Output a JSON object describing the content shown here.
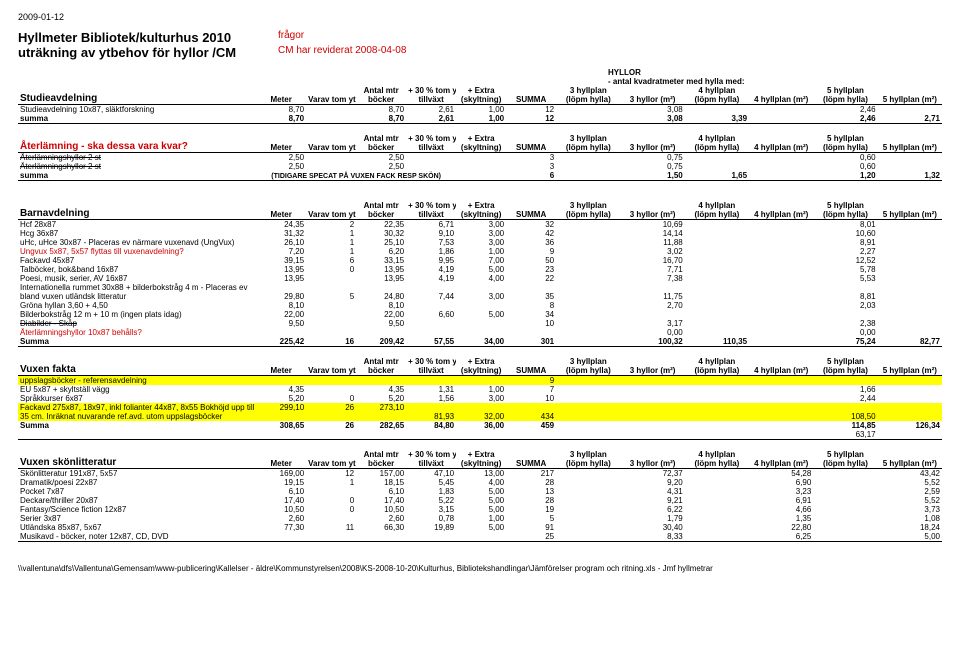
{
  "date": "2009-01-12",
  "title1": "Hyllmeter Bibliotek/kulturhus 2010",
  "title1_right": "frågor",
  "title2": "uträkning av ytbehov för hyllor /CM",
  "title2_right": "CM har reviderat 2008-04-08",
  "hyllor_header": "HYLLOR",
  "hyllor_sub": "- antal kvadratmeter med hylla med:",
  "cols": {
    "meter": "Meter",
    "varav": "Varav tom yta",
    "antal_mtr": "Antal mtr",
    "bocker": "böcker",
    "plus30": "+ 30 % tom yta",
    "tillvaxt": "tillväxt",
    "extra": "+ Extra",
    "skyltning": "(skyltning)",
    "summa": "SUMMA",
    "h3a": "3 hyllplan",
    "h3b": "(löpm hylla)",
    "h3c": "3 hyllor (m²)",
    "h4a": "4 hyllplan",
    "h4b": "(löpm hylla)",
    "h4c": "4 hyllplan (m²)",
    "h5a": "5 hyllplan",
    "h5b": "(löpm hylla)",
    "h5c": "5 hyllplan (m²)"
  },
  "sec1": {
    "title": "Studieavdelning",
    "rows": [
      {
        "label": "Studieavdelning 10x87, släktforskning",
        "v": [
          "8,70",
          "",
          "8,70",
          "2,61",
          "1,00",
          "12",
          "",
          "3,08",
          "",
          "",
          "2,46",
          ""
        ]
      },
      {
        "label": "summa",
        "bold": true,
        "v": [
          "8,70",
          "",
          "8,70",
          "2,61",
          "1,00",
          "12",
          "",
          "3,08",
          "3,39",
          "",
          "2,46",
          "2,71"
        ]
      }
    ]
  },
  "sec2": {
    "title": "Återlämning - ska dessa vara kvar?",
    "rows": [
      {
        "label": "Återlämningshyllor 2 st",
        "strike": true,
        "v": [
          "2,50",
          "",
          "2,50",
          "",
          "",
          "3",
          "",
          "0,75",
          "",
          "",
          "0,60",
          ""
        ]
      },
      {
        "label": "Återlämningshyllor 2 st",
        "strike": true,
        "v": [
          "2,50",
          "",
          "2,50",
          "",
          "",
          "3",
          "",
          "0,75",
          "",
          "",
          "0,60",
          ""
        ]
      },
      {
        "label": "summa",
        "bold": true,
        "note": "(TIDIGARE SPECAT PÅ VUXEN FACK RESP SKÖN)",
        "v": [
          "",
          "",
          "",
          "",
          "",
          "6",
          "",
          "1,50",
          "1,65",
          "",
          "1,20",
          "1,32"
        ]
      }
    ]
  },
  "sec3": {
    "title": "Barnavdelning",
    "rows": [
      {
        "label": "Hcf 28x87",
        "v": [
          "24,35",
          "2",
          "22,35",
          "6,71",
          "3,00",
          "32",
          "",
          "10,69",
          "",
          "",
          "8,01",
          ""
        ]
      },
      {
        "label": "Hcg 36x87",
        "v": [
          "31,32",
          "1",
          "30,32",
          "9,10",
          "3,00",
          "42",
          "",
          "14,14",
          "",
          "",
          "10,60",
          ""
        ]
      },
      {
        "label": "uHc, uHce 30x87 - Placeras ev närmare vuxenavd (UngVux)",
        "v": [
          "26,10",
          "1",
          "25,10",
          "7,53",
          "3,00",
          "36",
          "",
          "11,88",
          "",
          "",
          "8,91",
          ""
        ]
      },
      {
        "label": "Ungvux 5x87, 5x57 flyttas till vuxenavdelning?",
        "red": true,
        "v": [
          "7,20",
          "1",
          "6,20",
          "1,86",
          "1,00",
          "9",
          "",
          "3,02",
          "",
          "",
          "2,27",
          ""
        ]
      },
      {
        "label": "Fackavd 45x87",
        "v": [
          "39,15",
          "6",
          "33,15",
          "9,95",
          "7,00",
          "50",
          "",
          "16,70",
          "",
          "",
          "12,52",
          ""
        ]
      },
      {
        "label": "Talböcker, bok&band 16x87",
        "v": [
          "13,95",
          "0",
          "13,95",
          "4,19",
          "5,00",
          "23",
          "",
          "7,71",
          "",
          "",
          "5,78",
          ""
        ]
      },
      {
        "label": "Poesi, musik, serier, AV 16x87",
        "v": [
          "13,95",
          "",
          "13,95",
          "4,19",
          "4,00",
          "22",
          "",
          "7,38",
          "",
          "",
          "5,53",
          ""
        ]
      },
      {
        "label": "Internationella rummet 30x88 + bilderbokstråg 4 m - Placeras ev",
        "noV": true
      },
      {
        "label": "bland vuxen utländsk litteratur",
        "italic": true,
        "v": [
          "29,80",
          "5",
          "24,80",
          "7,44",
          "3,00",
          "35",
          "",
          "11,75",
          "",
          "",
          "8,81",
          ""
        ]
      },
      {
        "label": "Gröna hyllan 3,60 + 4,50",
        "v": [
          "8,10",
          "",
          "8,10",
          "",
          "",
          "8",
          "",
          "2,70",
          "",
          "",
          "2,03",
          ""
        ]
      },
      {
        "label": "Bilderbokstråg 12 m + 10 m (ingen plats idag)",
        "v": [
          "22,00",
          "",
          "22,00",
          "6,60",
          "5,00",
          "34",
          "",
          "",
          "",
          "",
          "",
          ""
        ]
      },
      {
        "label": "Diabilder - Skåp",
        "strike": true,
        "v": [
          "9,50",
          "",
          "9,50",
          "",
          "",
          "10",
          "",
          "3,17",
          "",
          "",
          "2,38",
          ""
        ]
      },
      {
        "label": "Återlämningshyllor 10x87 behålls?",
        "red": true,
        "v": [
          "",
          "",
          "",
          "",
          "",
          "",
          "",
          "0,00",
          "",
          "",
          "0,00",
          ""
        ]
      },
      {
        "label": "Summa",
        "bold": true,
        "v": [
          "225,42",
          "16",
          "209,42",
          "57,55",
          "34,00",
          "301",
          "",
          "100,32",
          "110,35",
          "",
          "75,24",
          "82,77"
        ]
      }
    ]
  },
  "sec4": {
    "title": "Vuxen fakta",
    "rows": [
      {
        "label": "uppslagsböcker - referensavdelning",
        "hl": true,
        "v": [
          "",
          "",
          "",
          "",
          "",
          "9",
          "",
          "",
          "",
          "",
          "",
          ""
        ]
      },
      {
        "label": "EU 5x87 + skyltställ vägg",
        "v": [
          "4,35",
          "",
          "4,35",
          "1,31",
          "1,00",
          "7",
          "",
          "",
          "",
          "",
          "1,66",
          ""
        ]
      },
      {
        "label": "Språkkurser 6x87",
        "v": [
          "5,20",
          "0",
          "5,20",
          "1,56",
          "3,00",
          "10",
          "",
          "",
          "",
          "",
          "2,44",
          ""
        ]
      },
      {
        "label": "Fackavd 275x87, 18x97, inkl folianter 44x87, 8x55 Bokhöjd upp till",
        "hl": true,
        "v": [
          "299,10",
          "26",
          "273,10",
          "",
          "",
          "",
          "",
          "",
          "",
          "",
          "",
          ""
        ]
      },
      {
        "label": "35 cm. Inräknat nuvarande ref.avd. utom uppslagsböcker",
        "hl": true,
        "v": [
          "",
          "",
          "",
          "81,93",
          "32,00",
          "434",
          "",
          "",
          "",
          "",
          "108,50",
          ""
        ]
      },
      {
        "label": "Summa",
        "bold": true,
        "v": [
          "308,65",
          "26",
          "282,65",
          "84,80",
          "36,00",
          "459",
          "",
          "",
          "",
          "",
          "114,85",
          "126,34"
        ]
      },
      {
        "label": "",
        "v": [
          "",
          "",
          "",
          "",
          "",
          "",
          "",
          "",
          "",
          "",
          "63,17",
          ""
        ]
      }
    ]
  },
  "sec5": {
    "title": "Vuxen skönlitteratur",
    "rows": [
      {
        "label": "Skönlitteratur 191x87, 5x57",
        "v": [
          "169,00",
          "12",
          "157,00",
          "47,10",
          "13,00",
          "217",
          "",
          "72,37",
          "",
          "54,28",
          "",
          "43,42"
        ]
      },
      {
        "label": "Dramatik/poesi 22x87",
        "v": [
          "19,15",
          "1",
          "18,15",
          "5,45",
          "4,00",
          "28",
          "",
          "9,20",
          "",
          "6,90",
          "",
          "5,52"
        ]
      },
      {
        "label": "Pocket 7x87",
        "v": [
          "6,10",
          "",
          "6,10",
          "1,83",
          "5,00",
          "13",
          "",
          "4,31",
          "",
          "3,23",
          "",
          "2,59"
        ]
      },
      {
        "label": "Deckare/thriller 20x87",
        "v": [
          "17,40",
          "0",
          "17,40",
          "5,22",
          "5,00",
          "28",
          "",
          "9,21",
          "",
          "6,91",
          "",
          "5,52"
        ]
      },
      {
        "label": "Fantasy/Science fiction 12x87",
        "v": [
          "10,50",
          "0",
          "10,50",
          "3,15",
          "5,00",
          "19",
          "",
          "6,22",
          "",
          "4,66",
          "",
          "3,73"
        ]
      },
      {
        "label": "Serier 3x87",
        "v": [
          "2,60",
          "",
          "2,60",
          "0,78",
          "1,00",
          "5",
          "",
          "1,79",
          "",
          "1,35",
          "",
          "1,08"
        ]
      },
      {
        "label": "Utländska 85x87, 5x67",
        "v": [
          "77,30",
          "11",
          "66,30",
          "19,89",
          "5,00",
          "91",
          "",
          "30,40",
          "",
          "22,80",
          "",
          "18,24"
        ]
      },
      {
        "label": "Musikavd - böcker, noter 12x87, CD, DVD",
        "v": [
          "",
          "",
          "",
          "",
          "",
          "25",
          "",
          "8,33",
          "",
          "6,25",
          "",
          "5,00"
        ]
      }
    ]
  },
  "footer": "\\\\vallentuna\\dfs\\Vallentuna\\Gemensam\\www-publicering\\Kallelser - äldre\\Kommunstyrelsen\\2008\\KS-2008-10-20\\Kulturhus, Bibliotekshandlingar\\Jämförelser program och ritning.xls - Jmf hyllmetrar"
}
